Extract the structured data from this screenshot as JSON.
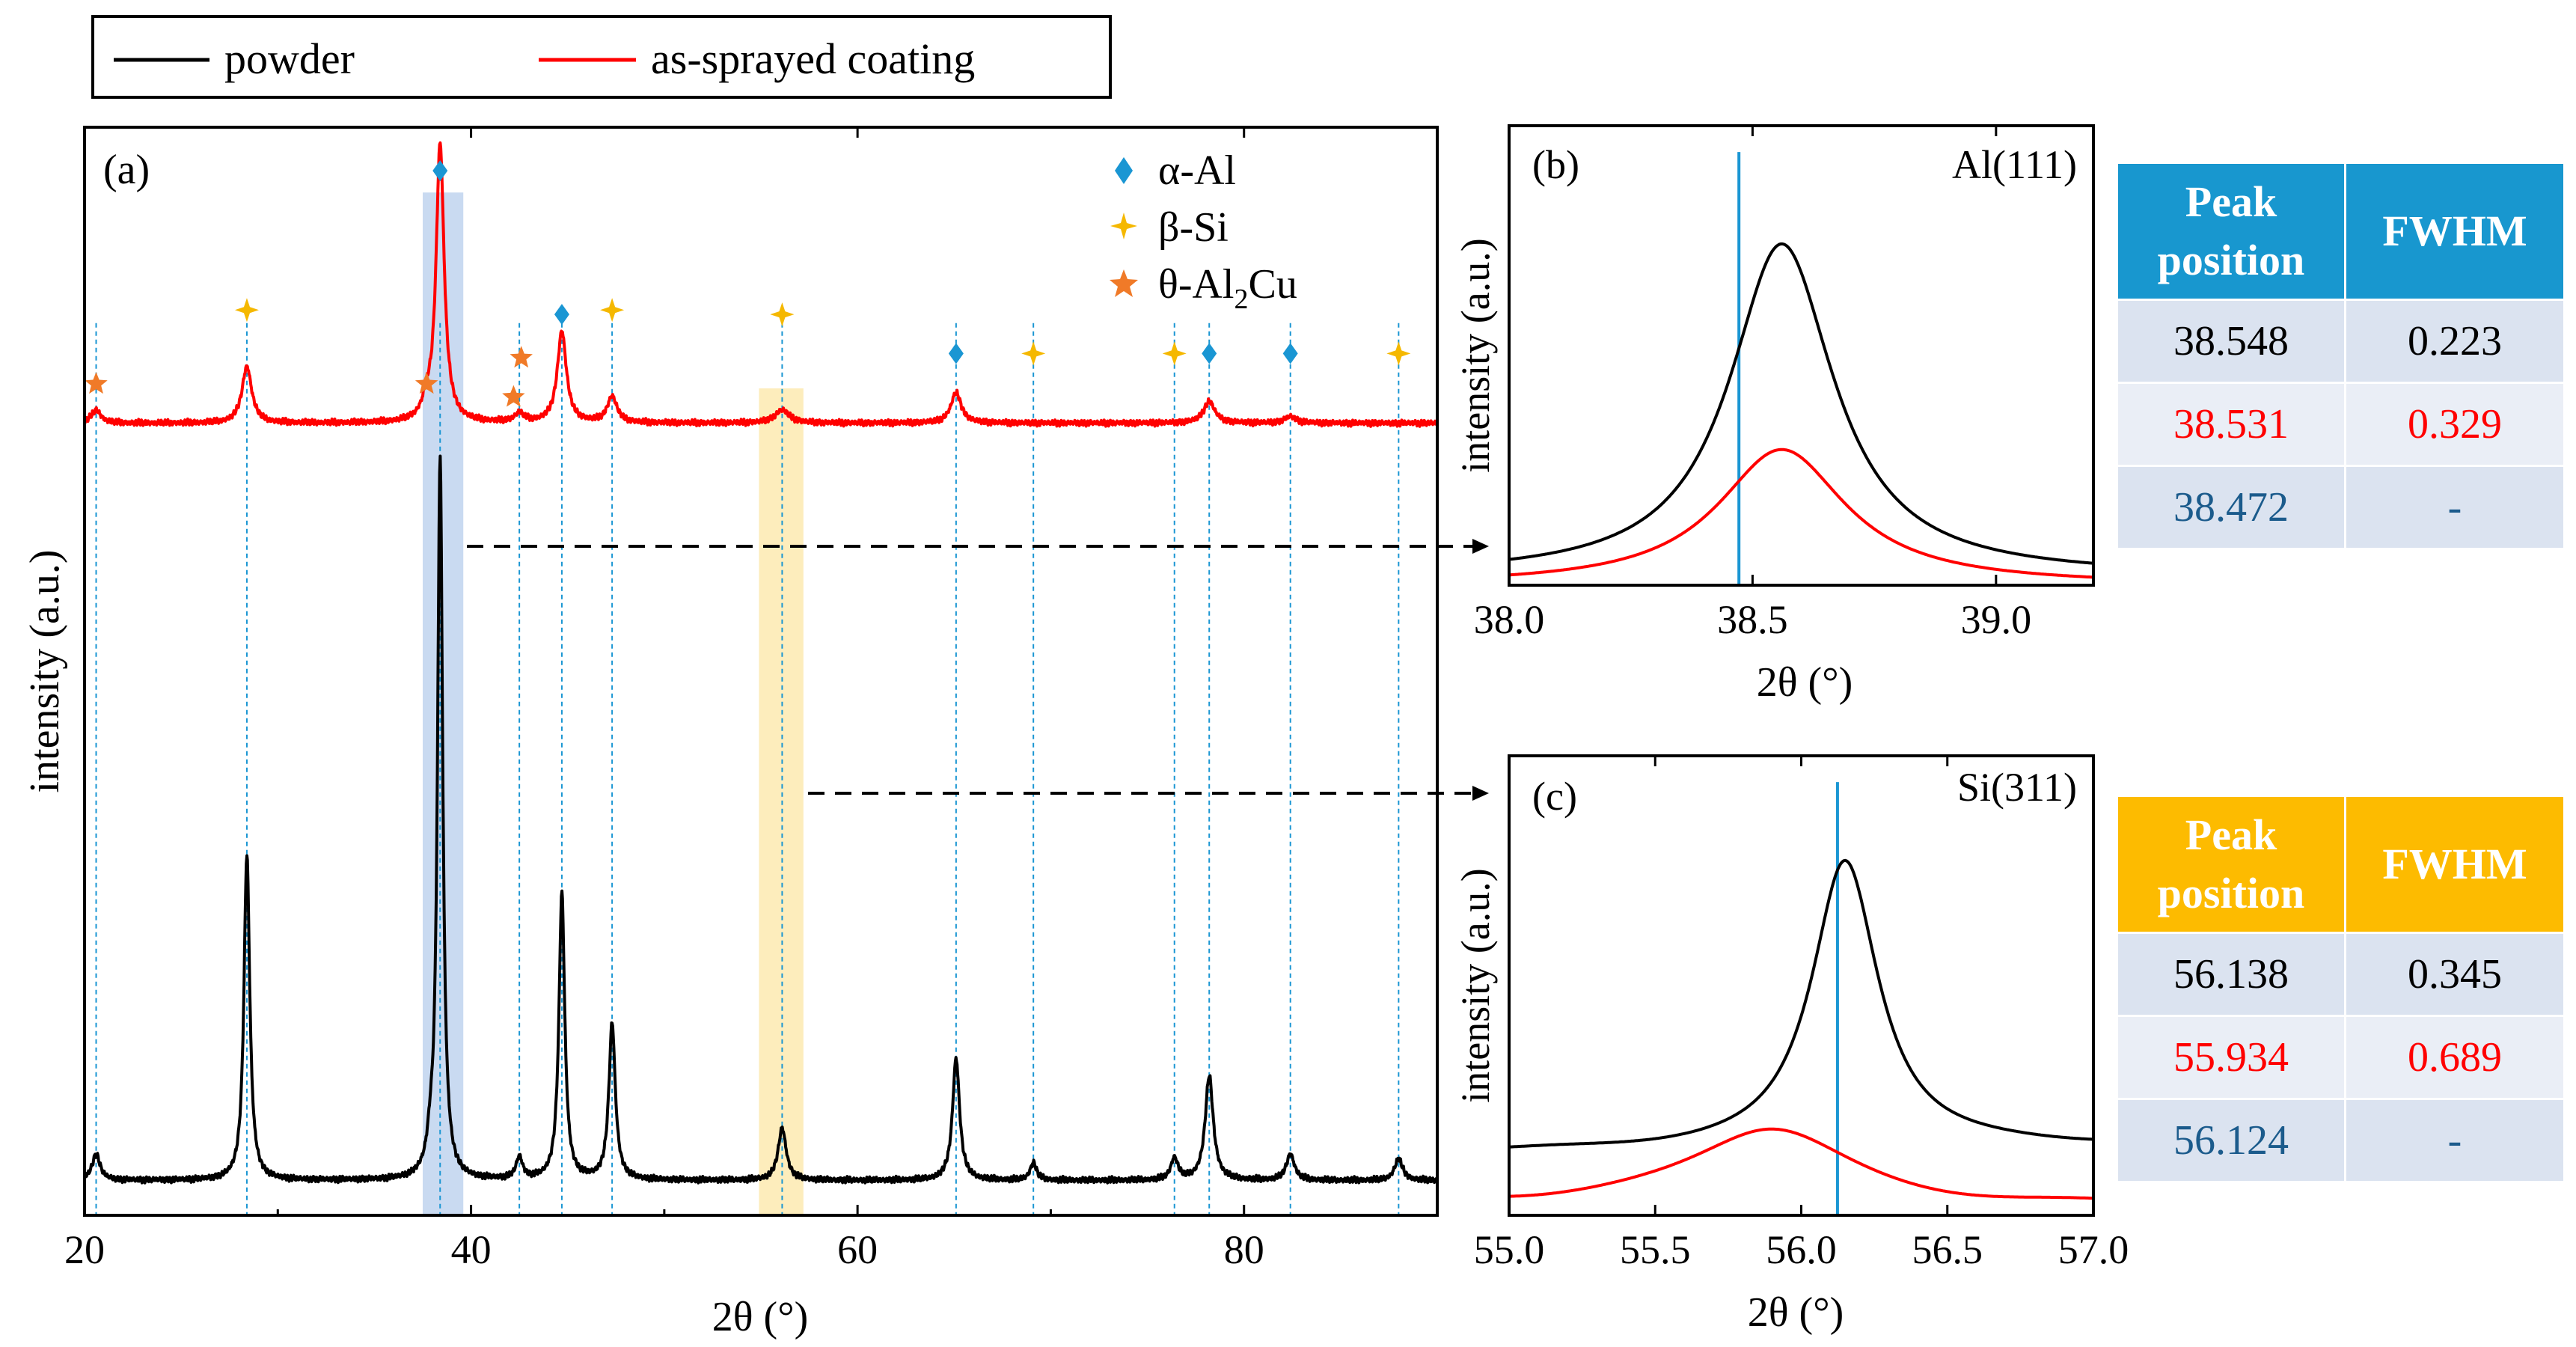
{
  "legend": {
    "items": [
      {
        "name": "powder",
        "color": "#000000"
      },
      {
        "name": "as-sprayed coating",
        "color": "#ff0000"
      }
    ]
  },
  "phase_legend": [
    {
      "symbol": "diamond",
      "color": "#1a96d3",
      "label": "α-Al"
    },
    {
      "symbol": "star4",
      "color": "#f5b800",
      "label": "β-Si"
    },
    {
      "symbol": "star5",
      "color": "#f07a28",
      "label": "θ-Al",
      "sub": "2",
      "label_suffix": "Cu"
    }
  ],
  "colors": {
    "powder": "#000000",
    "coating": "#ff0000",
    "ref_line": "#1a96d3",
    "al_band": "#bfd3ee",
    "si_band": "#fdeab0"
  },
  "chart_data": [
    {
      "id": "a",
      "type": "line",
      "panel_label": "(a)",
      "xlabel": "2θ (°)",
      "ylabel": "intensity (a.u.)",
      "xlim": [
        20,
        90
      ],
      "ylim": [
        0,
        2.5
      ],
      "xticks": [
        20,
        40,
        60,
        80
      ],
      "highlight_bands": [
        {
          "x0": 37.5,
          "x1": 39.6,
          "color": "#bfd3ee"
        },
        {
          "x0": 54.9,
          "x1": 57.2,
          "color": "#fdeab0"
        }
      ],
      "ref_lines": [
        20.6,
        28.4,
        38.4,
        42.5,
        44.7,
        47.3,
        56.1,
        65.1,
        69.1,
        76.4,
        78.2,
        82.4,
        88.0
      ],
      "markers": [
        {
          "x": 38.4,
          "y": 2.4,
          "phase": "α-Al"
        },
        {
          "x": 44.7,
          "y": 2.07,
          "phase": "α-Al"
        },
        {
          "x": 65.1,
          "y": 1.98,
          "phase": "α-Al"
        },
        {
          "x": 78.2,
          "y": 1.98,
          "phase": "α-Al"
        },
        {
          "x": 82.4,
          "y": 1.98,
          "phase": "α-Al"
        },
        {
          "x": 28.4,
          "y": 2.08,
          "phase": "β-Si"
        },
        {
          "x": 47.3,
          "y": 2.08,
          "phase": "β-Si"
        },
        {
          "x": 56.1,
          "y": 2.07,
          "phase": "β-Si"
        },
        {
          "x": 69.1,
          "y": 1.98,
          "phase": "β-Si"
        },
        {
          "x": 76.4,
          "y": 1.98,
          "phase": "β-Si"
        },
        {
          "x": 88.0,
          "y": 1.98,
          "phase": "β-Si"
        },
        {
          "x": 20.6,
          "y": 1.91,
          "phase": "θ-Al2Cu"
        },
        {
          "x": 37.7,
          "y": 1.91,
          "phase": "θ-Al2Cu"
        },
        {
          "x": 42.2,
          "y": 1.88,
          "phase": "θ-Al2Cu"
        },
        {
          "x": 42.6,
          "y": 1.97,
          "phase": "θ-Al2Cu"
        }
      ],
      "series": [
        {
          "name": "powder",
          "color": "#000000",
          "baseline": 0.08,
          "peaks": [
            {
              "x": 20.6,
              "h": 0.06,
              "w": 0.25
            },
            {
              "x": 28.4,
              "h": 0.75,
              "w": 0.18
            },
            {
              "x": 37.9,
              "h": 0.05,
              "w": 0.2
            },
            {
              "x": 38.4,
              "h": 1.66,
              "w": 0.16
            },
            {
              "x": 42.5,
              "h": 0.05,
              "w": 0.2
            },
            {
              "x": 44.7,
              "h": 0.66,
              "w": 0.18
            },
            {
              "x": 47.3,
              "h": 0.36,
              "w": 0.2
            },
            {
              "x": 56.1,
              "h": 0.12,
              "w": 0.25
            },
            {
              "x": 65.1,
              "h": 0.28,
              "w": 0.22
            },
            {
              "x": 69.1,
              "h": 0.04,
              "w": 0.2
            },
            {
              "x": 76.4,
              "h": 0.05,
              "w": 0.22
            },
            {
              "x": 78.2,
              "h": 0.24,
              "w": 0.25
            },
            {
              "x": 82.4,
              "h": 0.06,
              "w": 0.25
            },
            {
              "x": 88.0,
              "h": 0.05,
              "w": 0.25
            }
          ]
        },
        {
          "name": "as-sprayed coating",
          "color": "#ff0000",
          "baseline": 1.82,
          "peaks": [
            {
              "x": 20.6,
              "h": 0.03,
              "w": 0.3
            },
            {
              "x": 28.4,
              "h": 0.13,
              "w": 0.3
            },
            {
              "x": 37.7,
              "h": 0.03,
              "w": 0.25
            },
            {
              "x": 38.4,
              "h": 0.64,
              "w": 0.25
            },
            {
              "x": 42.5,
              "h": 0.02,
              "w": 0.3
            },
            {
              "x": 44.7,
              "h": 0.21,
              "w": 0.28
            },
            {
              "x": 47.3,
              "h": 0.06,
              "w": 0.3
            },
            {
              "x": 56.1,
              "h": 0.03,
              "w": 0.45
            },
            {
              "x": 65.1,
              "h": 0.07,
              "w": 0.32
            },
            {
              "x": 78.2,
              "h": 0.05,
              "w": 0.35
            },
            {
              "x": 82.4,
              "h": 0.015,
              "w": 0.35
            }
          ]
        }
      ]
    },
    {
      "id": "b",
      "type": "line",
      "panel_label": "(b)",
      "peak_label": "Al(111)",
      "xlabel": "2θ (°)",
      "ylabel": "intensity (a.u.)",
      "xlim": [
        38.0,
        39.2
      ],
      "ylim": [
        0,
        1.05
      ],
      "xticks": [
        38.0,
        38.5,
        39.0
      ],
      "ref_line_x": 38.472,
      "series": [
        {
          "name": "powder",
          "color": "#000000",
          "center": 38.56,
          "height": 0.76,
          "width": 0.13,
          "baseline": 0.02
        },
        {
          "name": "as-sprayed coating",
          "color": "#ff0000",
          "center": 38.56,
          "height": 0.31,
          "width": 0.16,
          "baseline": 0.0
        }
      ]
    },
    {
      "id": "c",
      "type": "line",
      "panel_label": "(c)",
      "peak_label": "Si(311)",
      "xlabel": "2θ (°)",
      "ylabel": "intensity (a.u.)",
      "xlim": [
        55.0,
        57.0
      ],
      "ylim": [
        0,
        1.05
      ],
      "xticks": [
        55.0,
        55.5,
        56.0,
        56.5,
        57.0
      ],
      "ref_line_x": 56.124,
      "series": [
        {
          "name": "powder",
          "color": "#000000",
          "center": 56.15,
          "height": 0.67,
          "width": 0.14,
          "baseline": 0.15
        },
        {
          "name": "as-sprayed coating",
          "color": "#ff0000",
          "center": 55.9,
          "height": 0.18,
          "width": 0.35,
          "baseline": 0.02
        }
      ]
    }
  ],
  "tables": {
    "b": {
      "headers": [
        "Peak position",
        "FWHM"
      ],
      "header_line1": "Peak",
      "header_line2": "position",
      "rows": [
        {
          "peak": "38.548",
          "fwhm": "0.223",
          "kind": "powder"
        },
        {
          "peak": "38.531",
          "fwhm": "0.329",
          "kind": "coating"
        },
        {
          "peak": "38.472",
          "fwhm": "-",
          "kind": "reference"
        }
      ]
    },
    "c": {
      "headers": [
        "Peak position",
        "FWHM"
      ],
      "header_line1": "Peak",
      "header_line2": "position",
      "rows": [
        {
          "peak": "56.138",
          "fwhm": "0.345",
          "kind": "powder"
        },
        {
          "peak": "55.934",
          "fwhm": "0.689",
          "kind": "coating"
        },
        {
          "peak": "56.124",
          "fwhm": "-",
          "kind": "reference"
        }
      ]
    }
  }
}
